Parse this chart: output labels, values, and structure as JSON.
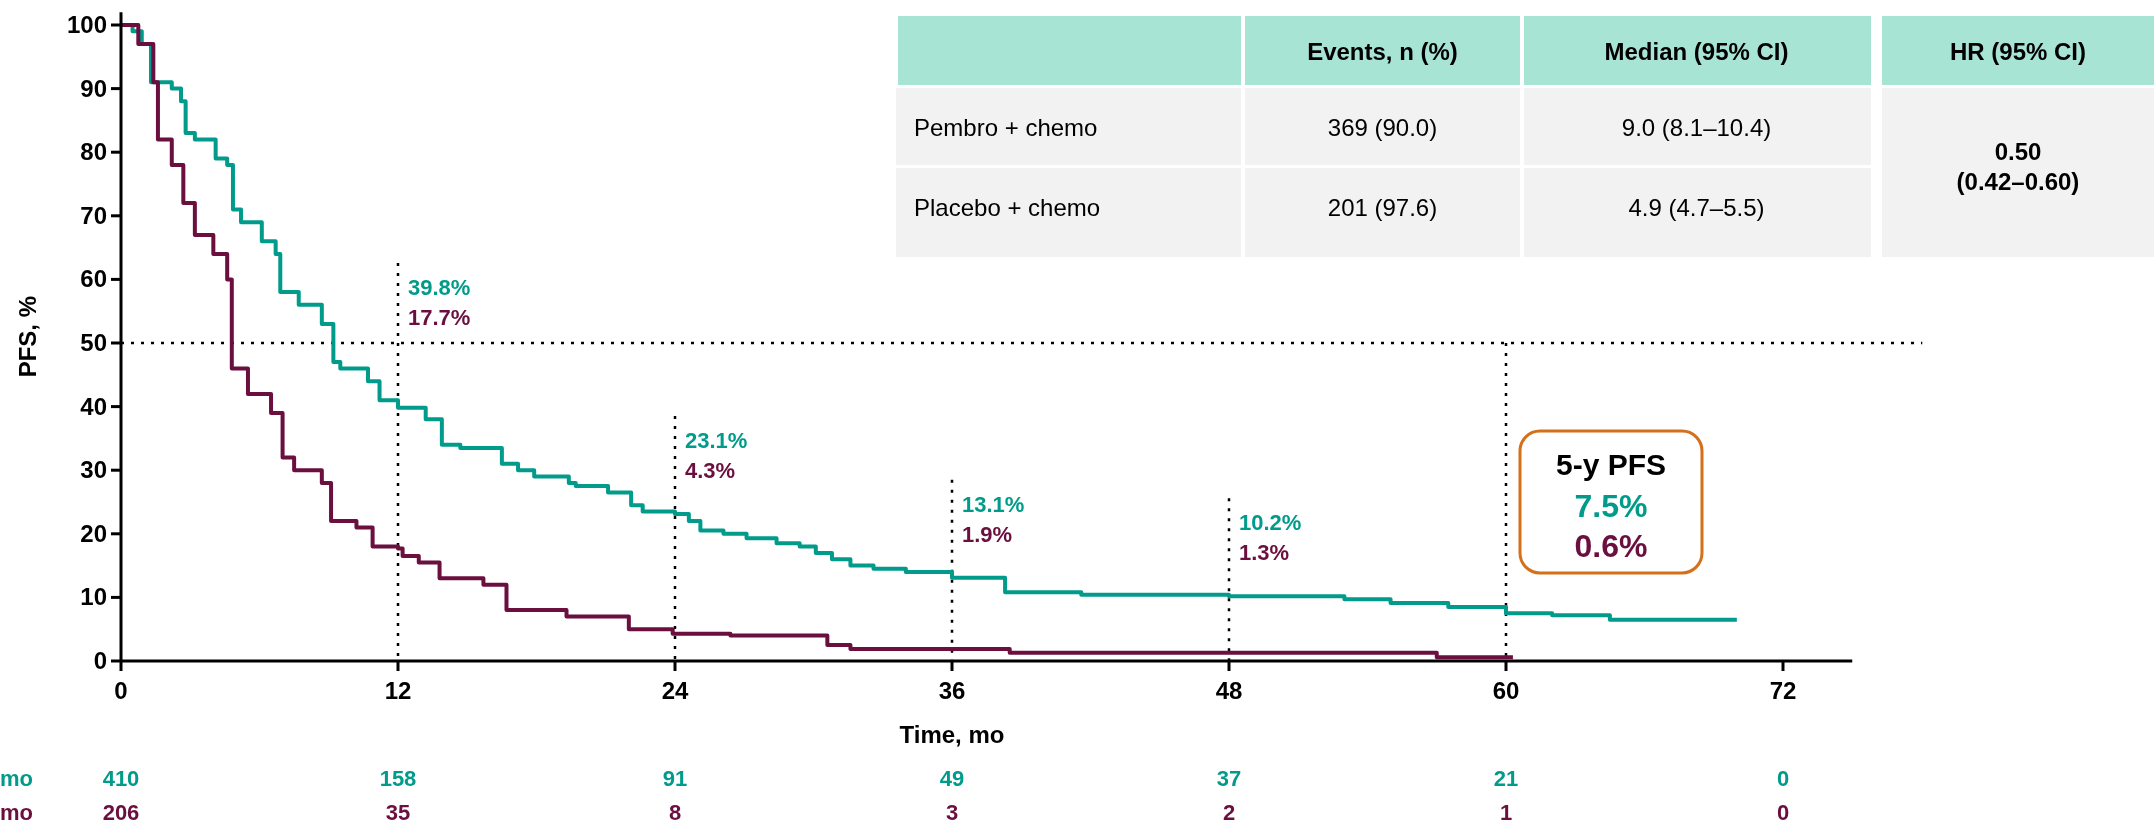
{
  "chart_data": [
    {
      "type": "step",
      "xlabel": "Time, mo",
      "ylabel": "PFS, %",
      "xlim": [
        0,
        75
      ],
      "ylim": [
        0,
        102
      ],
      "xticks": [
        0,
        12,
        24,
        36,
        48,
        60,
        72
      ],
      "yticks": [
        0,
        10,
        20,
        30,
        40,
        50,
        60,
        70,
        80,
        90,
        100
      ],
      "series": [
        {
          "color": "#009b8a",
          "x": [
            0,
            0.5,
            0.9,
            1.3,
            2.2,
            2.6,
            2.8,
            3.2,
            4.1,
            4.6,
            4.85,
            5.2,
            6.1,
            6.7,
            6.9,
            7.7,
            8.7,
            9.2,
            9.5,
            10.7,
            11.2,
            12,
            13.2,
            13.9,
            14.7,
            16.5,
            17.2,
            17.9,
            19.4,
            19.7,
            21.1,
            22.1,
            22.6,
            24,
            24.6,
            25.1,
            26.1,
            27.1,
            28.4,
            29.4,
            30.1,
            30.8,
            31.6,
            32.6,
            34,
            36,
            38.3,
            41.6,
            48,
            53,
            55,
            57.5,
            60,
            62,
            64.5,
            70
          ],
          "values": [
            100,
            99,
            97,
            91,
            90,
            88,
            83,
            82,
            79,
            78,
            71,
            69,
            66,
            64,
            58,
            56,
            53,
            47,
            46,
            44,
            41,
            39.8,
            38,
            34,
            33.5,
            31,
            30,
            29,
            28,
            27.5,
            26.5,
            24.5,
            23.5,
            23.1,
            22,
            20.5,
            20,
            19.3,
            18.5,
            18,
            17,
            16,
            15,
            14.5,
            14,
            13.1,
            10.8,
            10.4,
            10.2,
            9.7,
            9.1,
            8.5,
            7.5,
            7.2,
            6.5,
            6.5
          ]
        },
        {
          "color": "#6b0f3f",
          "x": [
            0,
            0.75,
            1.4,
            1.6,
            2.2,
            2.7,
            3.2,
            4,
            4.6,
            4.8,
            5.5,
            6.5,
            7,
            7.5,
            8.7,
            9.1,
            10.2,
            10.9,
            12,
            12.2,
            12.9,
            13.8,
            15.7,
            16.7,
            19.3,
            22,
            23.9,
            26.4,
            30.6,
            31.6,
            36,
            38.5,
            48,
            57,
            60.3
          ],
          "values": [
            100,
            97,
            91,
            82,
            78,
            72,
            67,
            64,
            60,
            46,
            42,
            39,
            32,
            30,
            28,
            22,
            21,
            18,
            17.7,
            16.5,
            15.5,
            13,
            12,
            8,
            7,
            5,
            4.3,
            4,
            2.5,
            1.9,
            1.9,
            1.3,
            1.3,
            0.6,
            0.6
          ]
        }
      ],
      "ref_lines": [
        {
          "axis": "y",
          "value": 50,
          "line_style": "dotted",
          "color": "#000000"
        },
        {
          "axis": "x",
          "value": 12,
          "line_style": "dotted",
          "color": "#000000"
        },
        {
          "axis": "x",
          "value": 24,
          "line_style": "dotted",
          "color": "#000000"
        },
        {
          "axis": "x",
          "value": 36,
          "line_style": "dotted",
          "color": "#000000"
        },
        {
          "axis": "x",
          "value": 48,
          "line_style": "dotted",
          "color": "#000000"
        },
        {
          "axis": "x",
          "value": 60,
          "line_style": "dotted",
          "color": "#000000"
        }
      ],
      "annotations": [
        "39.8%",
        "17.7%",
        "23.1%",
        "4.3%",
        "13.1%",
        "1.9%",
        "10.2%",
        "1.3%",
        "5-y PFS",
        "7.5%",
        "0.6%",
        "mo",
        "410",
        "158",
        "91",
        "49",
        "37",
        "21",
        "0",
        "mo",
        "206",
        "35",
        "8",
        "3",
        "2",
        "1",
        "0"
      ]
    },
    {
      "type": "other",
      "annotations": [
        "Events, n (%)",
        "Median (95% CI)",
        "HR (95% CI)",
        "Pembro + chemo",
        "369 (90.0)",
        "9.0 (8.1–10.4)",
        "Placebo + chemo",
        "201 (97.6)",
        "4.9 (4.7–5.5)",
        "0.50",
        "(0.42–0.60)"
      ]
    }
  ]
}
